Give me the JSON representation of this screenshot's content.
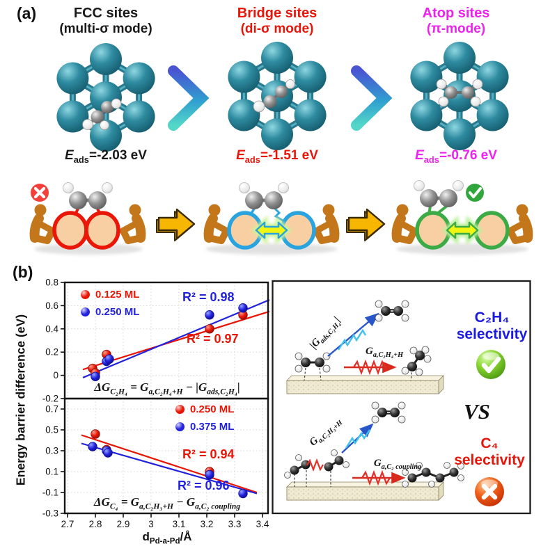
{
  "panel_a": {
    "label": "(a)",
    "columns": [
      {
        "title": "FCC sites",
        "subtitle": "(multi-σ mode)",
        "color": "#1a1a1a",
        "e_ads": "*{E}_{ads}=-2.03 eV"
      },
      {
        "title": "Bridge sites",
        "subtitle": "(di-σ mode)",
        "color": "#e8150a",
        "e_ads": "*{E}_{ads}=-1.51 eV"
      },
      {
        "title": "Atop sites",
        "subtitle": "(π-mode)",
        "color": "#ee22ee",
        "e_ads": "*{E}_{ads}=-0.76 eV"
      }
    ],
    "cartoon": {
      "bad_badge": "✕",
      "good_badge": "✓",
      "colors": {
        "figure": "#c4761b",
        "atom_fill": "#f8cfa3",
        "state1_outline": "#ea1608",
        "state2_outline": "#29a4de",
        "state3_outline": "#3cab46",
        "block_arrow": "#f7b602",
        "double_arrow_fill": "#f1f513"
      }
    }
  },
  "panel_b": {
    "label": "(b)",
    "y_axis_label": "Energy barrier difference (eV)",
    "x_axis_label": "d_{Pd-a-Pd}/Å",
    "right_panel": {
      "top": {
        "barrier_labels": [
          "|G_{ads,C₂H₄}|",
          "G_{a,C₂H₄+H}"
        ],
        "title_formula": "C₂H₄",
        "title_word": "selectivity",
        "color": "#1a1ae0",
        "verdict": "check"
      },
      "vs": "VS",
      "bottom": {
        "barrier_labels": [
          "G_{a,C₂H₃+H}",
          "G_{a,C₂ coupling}"
        ],
        "title_formula": "C₄",
        "title_word": "selectivity",
        "color": "#e8150a",
        "verdict": "cross"
      }
    }
  },
  "chart_data": [
    {
      "type": "scatter",
      "xlabel": "d_Pd-a-Pd (Å)",
      "ylabel": "Energy barrier difference (eV)",
      "xlim": [
        2.69,
        3.42
      ],
      "ylim": [
        -0.2,
        0.8
      ],
      "grid": true,
      "legend_position": "top-left",
      "xticks": [
        2.7,
        2.8,
        2.9,
        3.0,
        3.1,
        3.2,
        3.3,
        3.4
      ],
      "xtick_labels": null,
      "yticks": [
        0.8,
        0.6,
        0.4,
        0.2,
        0.0,
        -0.2
      ],
      "ytick_labels": [
        "0.8",
        "0.6",
        "0.4",
        "0.2",
        "0",
        "-0.2"
      ],
      "equation": "ΔG_{C₂H₄} = G_{a,C₂H₄+H} − |G_{ads,C₂H₄}|",
      "series": [
        {
          "name": "0.125 ML",
          "color": "#e81505",
          "points": [
            [
              2.79,
              0.06
            ],
            [
              2.8,
              0.02
            ],
            [
              2.84,
              0.18
            ],
            [
              3.21,
              0.4
            ],
            [
              3.33,
              0.52
            ]
          ],
          "fit": [
            [
              2.755,
              0.05
            ],
            [
              3.425,
              0.55
            ]
          ],
          "r2_label": "R² = 0.97"
        },
        {
          "name": "0.250 ML",
          "color": "#2222dd",
          "points": [
            [
              2.8,
              -0.01
            ],
            [
              2.84,
              0.12
            ],
            [
              2.85,
              0.14
            ],
            [
              3.21,
              0.52
            ],
            [
              3.33,
              0.58
            ]
          ],
          "fit": [
            [
              2.755,
              -0.02
            ],
            [
              3.425,
              0.65
            ]
          ],
          "r2_label": "R² = 0.98"
        }
      ]
    },
    {
      "type": "scatter",
      "xlabel": "d_Pd-a-Pd (Å)",
      "ylabel": "Energy barrier difference (eV)",
      "xlim": [
        2.69,
        3.42
      ],
      "ylim": [
        -0.3,
        0.8
      ],
      "grid": true,
      "legend_position": "top-right",
      "xticks": [
        2.7,
        2.8,
        2.9,
        3.0,
        3.1,
        3.2,
        3.3,
        3.4
      ],
      "xtick_labels": [
        "2.7",
        "2.8",
        "2.9",
        "3",
        "3.1",
        "3.2",
        "3.3",
        "3.4"
      ],
      "yticks": [
        0.7,
        0.5,
        0.3,
        0.1,
        -0.1,
        -0.3
      ],
      "ytick_labels": [
        "0.7",
        "0.5",
        "0.3",
        "0.1",
        "-0.1",
        "-0.3"
      ],
      "equation": "ΔG_{C₄} = G_{a,C₂H₃+H} − G_{a,C₂ coupling}",
      "series": [
        {
          "name": "0.250 ML",
          "color": "#e81505",
          "points": [
            [
              2.8,
              0.46
            ],
            [
              2.84,
              0.31
            ],
            [
              3.21,
              0.1
            ]
          ],
          "fit": [
            [
              2.75,
              0.45
            ],
            [
              3.38,
              -0.1
            ]
          ],
          "r2_label": "R² = 0.94"
        },
        {
          "name": "0.375 ML",
          "color": "#2222dd",
          "points": [
            [
              2.79,
              0.34
            ],
            [
              2.84,
              0.3
            ],
            [
              2.845,
              0.28
            ],
            [
              3.21,
              0.07
            ],
            [
              3.33,
              -0.11
            ]
          ],
          "fit": [
            [
              2.75,
              0.37
            ],
            [
              3.38,
              -0.11
            ]
          ],
          "r2_label": "R² = 0.96"
        }
      ]
    }
  ]
}
